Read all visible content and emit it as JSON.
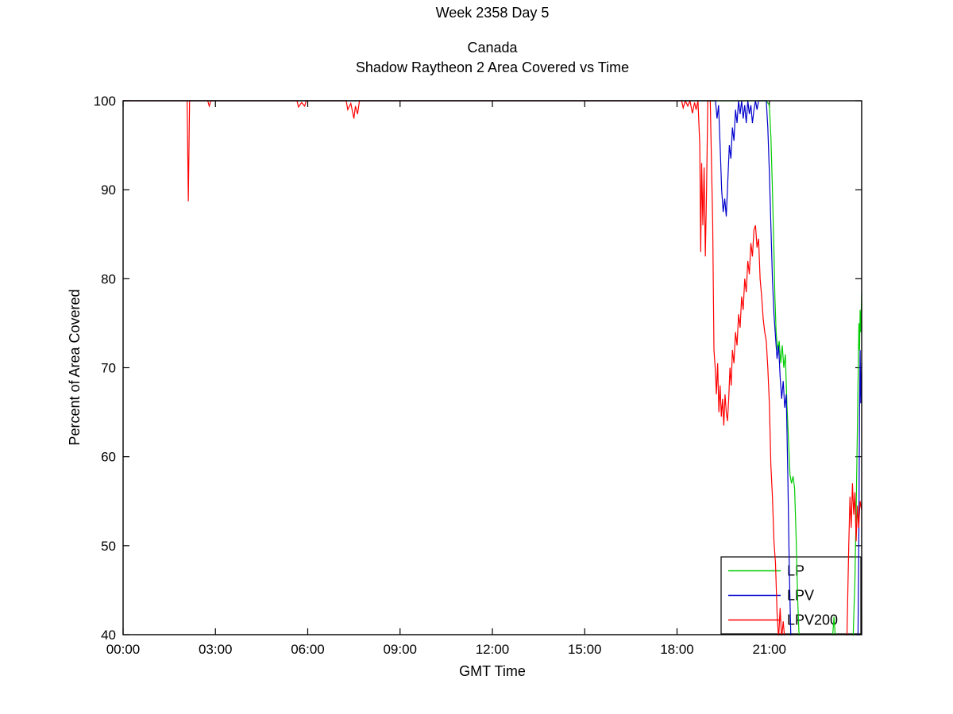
{
  "figure": {
    "suptitle": "Week 2358 Day 5",
    "title_line1": "Canada",
    "title_line2": "Shadow Raytheon 2 Area Covered vs Time"
  },
  "chart_data": {
    "type": "line",
    "title": "Canada - Shadow Raytheon 2 Area Covered vs Time",
    "suptitle": "Week 2358 Day 5",
    "xlabel": "GMT Time",
    "ylabel": "Percent of Area Covered",
    "xlim": [
      0,
      24
    ],
    "ylim": [
      40,
      100
    ],
    "grid": false,
    "legend_position": "bottom-right",
    "x_ticks": {
      "values": [
        0,
        3,
        6,
        9,
        12,
        15,
        18,
        21
      ],
      "labels": [
        "00:00",
        "03:00",
        "06:00",
        "09:00",
        "12:00",
        "15:00",
        "18:00",
        "21:00"
      ]
    },
    "y_ticks": {
      "values": [
        40,
        50,
        60,
        70,
        80,
        90,
        100
      ],
      "labels": [
        "40",
        "50",
        "60",
        "70",
        "80",
        "90",
        "100"
      ]
    },
    "axis_color": "#000000",
    "series": [
      {
        "name": "LP",
        "color": "#00CC00",
        "points": [
          [
            0,
            100
          ],
          [
            20.9,
            100
          ],
          [
            21.0,
            99.5
          ],
          [
            21.05,
            96
          ],
          [
            21.1,
            90
          ],
          [
            21.15,
            83
          ],
          [
            21.18,
            78
          ],
          [
            21.22,
            74
          ],
          [
            21.27,
            72
          ],
          [
            21.32,
            73
          ],
          [
            21.37,
            70.5
          ],
          [
            21.42,
            72.5
          ],
          [
            21.47,
            70
          ],
          [
            21.52,
            71.5
          ],
          [
            21.57,
            66
          ],
          [
            21.62,
            62
          ],
          [
            21.67,
            58
          ],
          [
            21.72,
            57
          ],
          [
            21.77,
            57.8
          ],
          [
            21.82,
            56.5
          ],
          [
            21.87,
            51
          ],
          [
            21.92,
            44
          ],
          [
            21.97,
            39.5
          ],
          [
            23.05,
            39.5
          ],
          [
            23.1,
            42
          ],
          [
            23.15,
            39.5
          ],
          [
            23.72,
            39.5
          ],
          [
            23.78,
            46
          ],
          [
            23.83,
            56
          ],
          [
            23.86,
            63
          ],
          [
            23.89,
            70
          ],
          [
            23.91,
            75
          ],
          [
            23.93,
            72
          ],
          [
            23.95,
            76.5
          ],
          [
            23.97,
            74
          ],
          [
            24,
            78.5
          ]
        ]
      },
      {
        "name": "LPV",
        "color": "#0000CC",
        "points": [
          [
            0,
            100
          ],
          [
            19.25,
            100
          ],
          [
            19.3,
            98
          ],
          [
            19.35,
            99.5
          ],
          [
            19.4,
            95
          ],
          [
            19.45,
            90
          ],
          [
            19.5,
            87.5
          ],
          [
            19.55,
            89
          ],
          [
            19.6,
            87
          ],
          [
            19.65,
            91
          ],
          [
            19.7,
            95
          ],
          [
            19.75,
            93.5
          ],
          [
            19.8,
            97
          ],
          [
            19.85,
            95.5
          ],
          [
            19.9,
            99
          ],
          [
            19.95,
            97.5
          ],
          [
            20,
            100
          ],
          [
            20.05,
            98.5
          ],
          [
            20.1,
            100
          ],
          [
            20.15,
            98
          ],
          [
            20.2,
            99.5
          ],
          [
            20.25,
            97.5
          ],
          [
            20.3,
            100
          ],
          [
            20.35,
            98.5
          ],
          [
            20.4,
            99.5
          ],
          [
            20.45,
            97.5
          ],
          [
            20.5,
            99
          ],
          [
            20.55,
            100
          ],
          [
            20.6,
            99
          ],
          [
            20.65,
            100
          ],
          [
            20.9,
            100
          ],
          [
            20.95,
            97
          ],
          [
            21.0,
            92
          ],
          [
            21.05,
            86
          ],
          [
            21.1,
            80
          ],
          [
            21.15,
            76
          ],
          [
            21.2,
            73.5
          ],
          [
            21.25,
            71
          ],
          [
            21.3,
            72.5
          ],
          [
            21.35,
            69
          ],
          [
            21.4,
            66.5
          ],
          [
            21.45,
            68.5
          ],
          [
            21.5,
            65.5
          ],
          [
            21.55,
            67
          ],
          [
            21.6,
            58
          ],
          [
            21.65,
            47
          ],
          [
            21.7,
            39.5
          ],
          [
            23.88,
            39.5
          ],
          [
            23.91,
            52
          ],
          [
            23.93,
            65
          ],
          [
            23.95,
            72
          ],
          [
            23.97,
            66
          ],
          [
            24,
            70.5
          ]
        ]
      },
      {
        "name": "LPV200",
        "color": "#FF0000",
        "points": [
          [
            0,
            100
          ],
          [
            2.08,
            100
          ],
          [
            2.12,
            88.7
          ],
          [
            2.16,
            100
          ],
          [
            2.75,
            100
          ],
          [
            2.8,
            99.4
          ],
          [
            2.85,
            100
          ],
          [
            5.65,
            100
          ],
          [
            5.7,
            99.3
          ],
          [
            5.8,
            99.8
          ],
          [
            5.9,
            99.4
          ],
          [
            5.95,
            100
          ],
          [
            7.25,
            100
          ],
          [
            7.3,
            99
          ],
          [
            7.4,
            99.7
          ],
          [
            7.5,
            98
          ],
          [
            7.55,
            99.4
          ],
          [
            7.62,
            98.5
          ],
          [
            7.68,
            100
          ],
          [
            18.15,
            100
          ],
          [
            18.2,
            99.2
          ],
          [
            18.27,
            100
          ],
          [
            18.35,
            99.4
          ],
          [
            18.42,
            100
          ],
          [
            18.5,
            98.6
          ],
          [
            18.57,
            99.8
          ],
          [
            18.62,
            99
          ],
          [
            18.68,
            100
          ],
          [
            18.74,
            95
          ],
          [
            18.77,
            83
          ],
          [
            18.8,
            93
          ],
          [
            18.84,
            86
          ],
          [
            18.88,
            92.5
          ],
          [
            18.92,
            82.5
          ],
          [
            18.96,
            90
          ],
          [
            19.0,
            100
          ],
          [
            19.08,
            100
          ],
          [
            19.12,
            93
          ],
          [
            19.16,
            86
          ],
          [
            19.2,
            72
          ],
          [
            19.24,
            70
          ],
          [
            19.28,
            67
          ],
          [
            19.32,
            70.5
          ],
          [
            19.36,
            65
          ],
          [
            19.4,
            68
          ],
          [
            19.44,
            64.5
          ],
          [
            19.48,
            66.5
          ],
          [
            19.52,
            63.5
          ],
          [
            19.56,
            67
          ],
          [
            19.6,
            65
          ],
          [
            19.64,
            64
          ],
          [
            19.68,
            66.5
          ],
          [
            19.72,
            70
          ],
          [
            19.76,
            68
          ],
          [
            19.8,
            72
          ],
          [
            19.85,
            70.5
          ],
          [
            19.9,
            74
          ],
          [
            19.95,
            72.5
          ],
          [
            20,
            76
          ],
          [
            20.05,
            74.5
          ],
          [
            20.1,
            78
          ],
          [
            20.15,
            76.5
          ],
          [
            20.2,
            80
          ],
          [
            20.25,
            78.5
          ],
          [
            20.3,
            82
          ],
          [
            20.35,
            80.5
          ],
          [
            20.4,
            84
          ],
          [
            20.45,
            82.5
          ],
          [
            20.5,
            85.5
          ],
          [
            20.55,
            86
          ],
          [
            20.6,
            83.5
          ],
          [
            20.65,
            84.5
          ],
          [
            20.7,
            80
          ],
          [
            20.75,
            78
          ],
          [
            20.8,
            75.5
          ],
          [
            20.85,
            74
          ],
          [
            20.9,
            73
          ],
          [
            20.95,
            70
          ],
          [
            21.0,
            66
          ],
          [
            21.05,
            59
          ],
          [
            21.1,
            55.5
          ],
          [
            21.15,
            50.5
          ],
          [
            21.2,
            48
          ],
          [
            21.25,
            42.5
          ],
          [
            21.3,
            39.5
          ],
          [
            21.35,
            43
          ],
          [
            21.4,
            39.5
          ],
          [
            21.45,
            41.5
          ],
          [
            21.5,
            39.5
          ],
          [
            23.52,
            39.5
          ],
          [
            23.58,
            50
          ],
          [
            23.62,
            55.5
          ],
          [
            23.66,
            52
          ],
          [
            23.7,
            57
          ],
          [
            23.74,
            53.5
          ],
          [
            23.78,
            56
          ],
          [
            23.82,
            50.5
          ],
          [
            23.86,
            54.5
          ],
          [
            23.9,
            52
          ],
          [
            23.95,
            55
          ],
          [
            24,
            54
          ]
        ]
      }
    ]
  },
  "legend": {
    "entries": [
      {
        "label": "LP"
      },
      {
        "label": "LPV"
      },
      {
        "label": "LPV200"
      }
    ]
  }
}
